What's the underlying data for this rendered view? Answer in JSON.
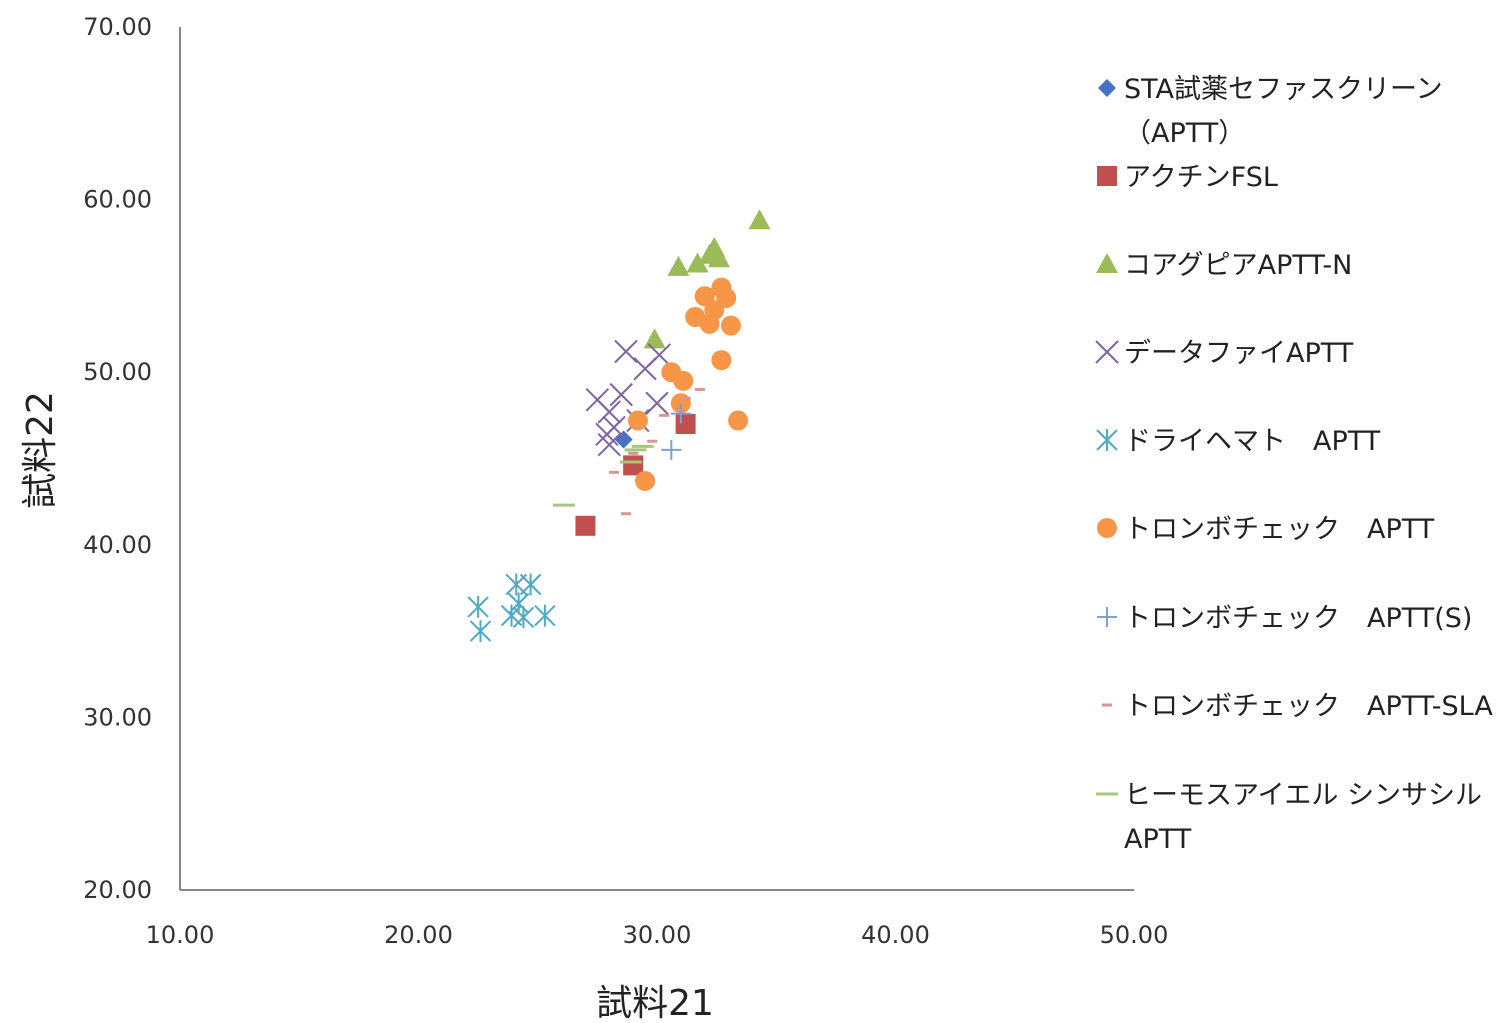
{
  "chart_data": {
    "type": "scatter",
    "title": "",
    "xlabel": "試料21",
    "ylabel": "試料22",
    "xlim": [
      10,
      50
    ],
    "ylim": [
      20,
      70
    ],
    "x_ticks": [
      "10.00",
      "20.00",
      "30.00",
      "40.00",
      "50.00"
    ],
    "y_ticks": [
      "20.00",
      "30.00",
      "40.00",
      "50.00",
      "60.00",
      "70.00"
    ],
    "grid": false,
    "legend_position": "right",
    "series": [
      {
        "name": "STA試薬セファスクリーン（APTT）",
        "legend_lines": [
          "STA試薬セファスクリーン",
          "（APTT）"
        ],
        "marker": "diamond",
        "color": "#4472c4",
        "points": [
          [
            28.6,
            46.1
          ]
        ]
      },
      {
        "name": "アクチンFSL",
        "legend_lines": [
          "アクチンFSL"
        ],
        "marker": "square",
        "color": "#c0504d",
        "points": [
          [
            27.0,
            41.1
          ],
          [
            29.0,
            44.6
          ],
          [
            31.2,
            47.0
          ]
        ]
      },
      {
        "name": "コアグピアAPTT-N",
        "legend_lines": [
          "コアグピアAPTT-N"
        ],
        "marker": "triangle",
        "color": "#9bbb59",
        "points": [
          [
            29.9,
            51.9
          ],
          [
            30.9,
            56.1
          ],
          [
            31.7,
            56.3
          ],
          [
            32.2,
            56.8
          ],
          [
            32.4,
            57.2
          ],
          [
            32.6,
            56.6
          ],
          [
            34.3,
            58.8
          ]
        ]
      },
      {
        "name": "データファイAPTT",
        "legend_lines": [
          "データファイAPTT"
        ],
        "marker": "x",
        "color": "#8064a2",
        "points": [
          [
            27.5,
            48.4
          ],
          [
            28.0,
            47.7
          ],
          [
            28.5,
            48.7
          ],
          [
            28.7,
            51.2
          ],
          [
            28.2,
            46.8
          ],
          [
            27.9,
            46.4
          ],
          [
            28.0,
            45.8
          ],
          [
            29.5,
            50.2
          ],
          [
            30.1,
            51.0
          ],
          [
            30.0,
            48.2
          ],
          [
            29.2,
            47.2
          ]
        ]
      },
      {
        "name": "ドライヘマト　APTT",
        "legend_lines": [
          "ドライヘマト　APTT"
        ],
        "marker": "asterisk",
        "color": "#4bacc6",
        "points": [
          [
            22.5,
            36.4
          ],
          [
            22.6,
            35.0
          ],
          [
            23.9,
            35.9
          ],
          [
            24.1,
            37.7
          ],
          [
            24.2,
            36.6
          ],
          [
            24.4,
            35.8
          ],
          [
            24.7,
            37.7
          ],
          [
            25.3,
            35.9
          ]
        ]
      },
      {
        "name": "トロンボチェック　APTT",
        "legend_lines": [
          "トロンボチェック　APTT"
        ],
        "marker": "circle",
        "color": "#f79646",
        "points": [
          [
            29.2,
            47.2
          ],
          [
            29.5,
            43.7
          ],
          [
            30.6,
            50.0
          ],
          [
            31.1,
            49.5
          ],
          [
            31.0,
            48.2
          ],
          [
            31.6,
            53.2
          ],
          [
            32.0,
            54.4
          ],
          [
            32.2,
            52.8
          ],
          [
            32.4,
            53.6
          ],
          [
            32.7,
            54.9
          ],
          [
            32.9,
            54.3
          ],
          [
            32.7,
            50.7
          ],
          [
            33.1,
            52.7
          ],
          [
            33.4,
            47.2
          ]
        ]
      },
      {
        "name": "トロンボチェック　APTT(S)",
        "legend_lines": [
          "トロンボチェック　APTT(S)"
        ],
        "marker": "plus",
        "color": "#7f9fd8",
        "points": [
          [
            30.6,
            45.5
          ],
          [
            31.0,
            47.6
          ]
        ]
      },
      {
        "name": "トロンボチェック　APTT-SLA",
        "legend_lines": [
          "トロンボチェック　APTT-SLA"
        ],
        "marker": "dash",
        "color": "#d99594",
        "points": [
          [
            28.7,
            41.8
          ],
          [
            28.2,
            44.2
          ],
          [
            29.8,
            46.0
          ],
          [
            30.3,
            47.5
          ],
          [
            31.2,
            48.5
          ],
          [
            31.8,
            49.0
          ],
          [
            29.0,
            45.3
          ]
        ]
      },
      {
        "name": "ヒーモスアイエル シンサシル APTT",
        "legend_lines": [
          "ヒーモスアイエル シンサシル",
          "APTT"
        ],
        "marker": "bar",
        "color": "#a4c97e",
        "points": [
          [
            26.1,
            42.3
          ],
          [
            29.1,
            45.5
          ],
          [
            29.4,
            45.7
          ],
          [
            28.9,
            44.8
          ]
        ]
      }
    ]
  }
}
